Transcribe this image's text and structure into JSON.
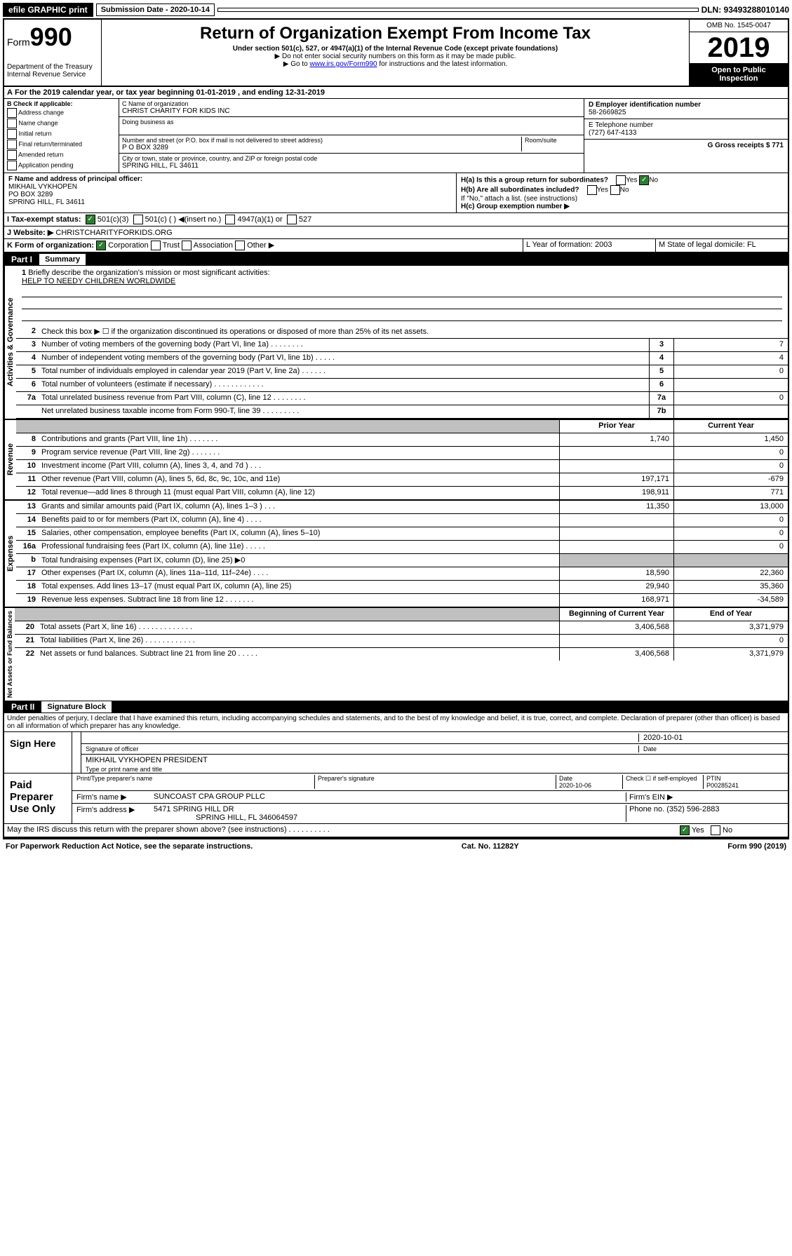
{
  "top_bar": {
    "efile": "efile GRAPHIC print",
    "submission_label": "Submission Date - 2020-10-14",
    "dln": "DLN: 93493288010140"
  },
  "header": {
    "form_label": "Form",
    "form_number": "990",
    "dept": "Department of the Treasury\nInternal Revenue Service",
    "title": "Return of Organization Exempt From Income Tax",
    "subtitle": "Under section 501(c), 527, or 4947(a)(1) of the Internal Revenue Code (except private foundations)",
    "note1": "▶ Do not enter social security numbers on this form as it may be made public.",
    "note2_pre": "▶ Go to ",
    "note2_link": "www.irs.gov/Form990",
    "note2_post": " for instructions and the latest information.",
    "omb": "OMB No. 1545-0047",
    "year": "2019",
    "open": "Open to Public Inspection"
  },
  "period": {
    "text_a": "For the 2019 calendar year, or tax year beginning 01-01-2019   , and ending 12-31-2019"
  },
  "block_b": {
    "label": "B Check if applicable:",
    "opts": [
      "Address change",
      "Name change",
      "Initial return",
      "Final return/terminated",
      "Amended return",
      "Application pending"
    ]
  },
  "block_c": {
    "name_label": "C Name of organization",
    "name": "CHRIST CHARITY FOR KIDS INC",
    "dba_label": "Doing business as",
    "addr_label": "Number and street (or P.O. box if mail is not delivered to street address)",
    "room_label": "Room/suite",
    "addr": "P O BOX 3289",
    "city_label": "City or town, state or province, country, and ZIP or foreign postal code",
    "city": "SPRING HILL, FL  34611"
  },
  "block_d": {
    "label": "D Employer identification number",
    "value": "58-2669825"
  },
  "block_e": {
    "label": "E Telephone number",
    "value": "(727) 647-4133"
  },
  "block_g": {
    "label": "G Gross receipts $ 771"
  },
  "block_f": {
    "label": "F  Name and address of principal officer:",
    "name": "MIKHAIL VYKHOPEN",
    "addr1": "PO BOX 3289",
    "addr2": "SPRING HILL, FL  34611"
  },
  "block_h": {
    "ha": "H(a)  Is this a group return for subordinates?",
    "hb": "H(b)  Are all subordinates included?",
    "hb_note": "If \"No,\" attach a list. (see instructions)",
    "hc": "H(c)  Group exemption number ▶"
  },
  "block_i": {
    "label": "I    Tax-exempt status:",
    "opt1": "501(c)(3)",
    "opt2": "501(c) (  ) ◀(insert no.)",
    "opt3": "4947(a)(1) or",
    "opt4": "527"
  },
  "block_j": {
    "label": "J   Website: ▶",
    "value": "CHRISTCHARITYFORKIDS.ORG"
  },
  "block_k": {
    "label": "K Form of organization:",
    "opts": [
      "Corporation",
      "Trust",
      "Association",
      "Other ▶"
    ]
  },
  "block_l": {
    "label": "L Year of formation: 2003"
  },
  "block_m": {
    "label": "M State of legal domicile: FL"
  },
  "part1": {
    "header": "Part I",
    "title": "Summary",
    "line1": "Briefly describe the organization's mission or most significant activities:",
    "mission": "HELP TO NEEDY CHILDREN WORLDWIDE",
    "line2": "Check this box ▶ ☐  if the organization discontinued its operations or disposed of more than 25% of its net assets.",
    "lines_single": [
      {
        "num": "3",
        "text": "Number of voting members of the governing body (Part VI, line 1a)  .    .    .    .    .    .    .    .",
        "box": "3",
        "val": "7"
      },
      {
        "num": "4",
        "text": "Number of independent voting members of the governing body (Part VI, line 1b)  .    .    .    .    .",
        "box": "4",
        "val": "4"
      },
      {
        "num": "5",
        "text": "Total number of individuals employed in calendar year 2019 (Part V, line 2a)  .    .    .    .    .    .",
        "box": "5",
        "val": "0"
      },
      {
        "num": "6",
        "text": "Total number of volunteers (estimate if necessary)  .    .    .    .    .    .    .    .    .    .    .    .",
        "box": "6",
        "val": ""
      },
      {
        "num": "7a",
        "text": "Total unrelated business revenue from Part VIII, column (C), line 12  .    .    .    .    .    .    .    .",
        "box": "7a",
        "val": "0"
      },
      {
        "num": "",
        "text": "Net unrelated business taxable income from Form 990-T, line 39  .    .    .    .    .    .    .    .    .",
        "box": "7b",
        "val": ""
      }
    ],
    "col_headers": {
      "prior": "Prior Year",
      "current": "Current Year"
    },
    "revenue": [
      {
        "num": "8",
        "text": "Contributions and grants (Part VIII, line 1h)  .    .    .    .    .    .    .",
        "prior": "1,740",
        "current": "1,450"
      },
      {
        "num": "9",
        "text": "Program service revenue (Part VIII, line 2g)  .    .    .    .    .    .    .",
        "prior": "",
        "current": "0"
      },
      {
        "num": "10",
        "text": "Investment income (Part VIII, column (A), lines 3, 4, and 7d )  .    .    .",
        "prior": "",
        "current": "0"
      },
      {
        "num": "11",
        "text": "Other revenue (Part VIII, column (A), lines 5, 6d, 8c, 9c, 10c, and 11e)",
        "prior": "197,171",
        "current": "-679"
      },
      {
        "num": "12",
        "text": "Total revenue—add lines 8 through 11 (must equal Part VIII, column (A), line 12)",
        "prior": "198,911",
        "current": "771"
      }
    ],
    "expenses": [
      {
        "num": "13",
        "text": "Grants and similar amounts paid (Part IX, column (A), lines 1–3 )  .    .    .",
        "prior": "11,350",
        "current": "13,000"
      },
      {
        "num": "14",
        "text": "Benefits paid to or for members (Part IX, column (A), line 4)  .    .    .    .",
        "prior": "",
        "current": "0"
      },
      {
        "num": "15",
        "text": "Salaries, other compensation, employee benefits (Part IX, column (A), lines 5–10)",
        "prior": "",
        "current": "0"
      },
      {
        "num": "16a",
        "text": "Professional fundraising fees (Part IX, column (A), line 11e)  .    .    .    .    .",
        "prior": "",
        "current": "0"
      },
      {
        "num": "b",
        "text": "Total fundraising expenses (Part IX, column (D), line 25) ▶0",
        "prior": "shaded",
        "current": "shaded"
      },
      {
        "num": "17",
        "text": "Other expenses (Part IX, column (A), lines 11a–11d, 11f–24e)  .    .    .    .",
        "prior": "18,590",
        "current": "22,360"
      },
      {
        "num": "18",
        "text": "Total expenses. Add lines 13–17 (must equal Part IX, column (A), line 25)",
        "prior": "29,940",
        "current": "35,360"
      },
      {
        "num": "19",
        "text": "Revenue less expenses. Subtract line 18 from line 12  .    .    .    .    .    .    .",
        "prior": "168,971",
        "current": "-34,589"
      }
    ],
    "net_headers": {
      "begin": "Beginning of Current Year",
      "end": "End of Year"
    },
    "net_assets": [
      {
        "num": "20",
        "text": "Total assets (Part X, line 16)  .    .    .    .    .    .    .    .    .    .    .    .    .",
        "prior": "3,406,568",
        "current": "3,371,979"
      },
      {
        "num": "21",
        "text": "Total liabilities (Part X, line 26)  .    .    .    .    .    .    .    .    .    .    .    .",
        "prior": "",
        "current": "0"
      },
      {
        "num": "22",
        "text": "Net assets or fund balances. Subtract line 21 from line 20  .    .    .    .    .",
        "prior": "3,406,568",
        "current": "3,371,979"
      }
    ]
  },
  "vert_labels": {
    "activities": "Activities & Governance",
    "revenue": "Revenue",
    "expenses": "Expenses",
    "net": "Net Assets or Fund Balances"
  },
  "part2": {
    "header": "Part II",
    "title": "Signature Block",
    "perjury": "Under penalties of perjury, I declare that I have examined this return, including accompanying schedules and statements, and to the best of my knowledge and belief, it is true, correct, and complete. Declaration of preparer (other than officer) is based on all information of which preparer has any knowledge.",
    "sign_here": "Sign Here",
    "sig_officer": "Signature of officer",
    "sig_date": "2020-10-01",
    "date_label": "Date",
    "officer_name": "MIKHAIL VYKHOPEN  PRESIDENT",
    "type_label": "Type or print name and title",
    "paid": "Paid Preparer Use Only",
    "prep_name_label": "Print/Type preparer's name",
    "prep_sig_label": "Preparer's signature",
    "prep_date_label": "Date",
    "prep_date": "2020-10-06",
    "check_self": "Check ☐ if self-employed",
    "ptin_label": "PTIN",
    "ptin": "P00285241",
    "firm_name_label": "Firm's name    ▶",
    "firm_name": "SUNCOAST CPA GROUP PLLC",
    "firm_ein_label": "Firm's EIN ▶",
    "firm_addr_label": "Firm's address ▶",
    "firm_addr": "5471 SPRING HILL DR",
    "firm_city": "SPRING HILL, FL  346064597",
    "phone_label": "Phone no. (352) 596-2883",
    "discuss": "May the IRS discuss this return with the preparer shown above? (see instructions)   .    .    .    .    .    .    .    .    .    ."
  },
  "footer": {
    "left": "For Paperwork Reduction Act Notice, see the separate instructions.",
    "center": "Cat. No. 11282Y",
    "right": "Form 990 (2019)"
  }
}
